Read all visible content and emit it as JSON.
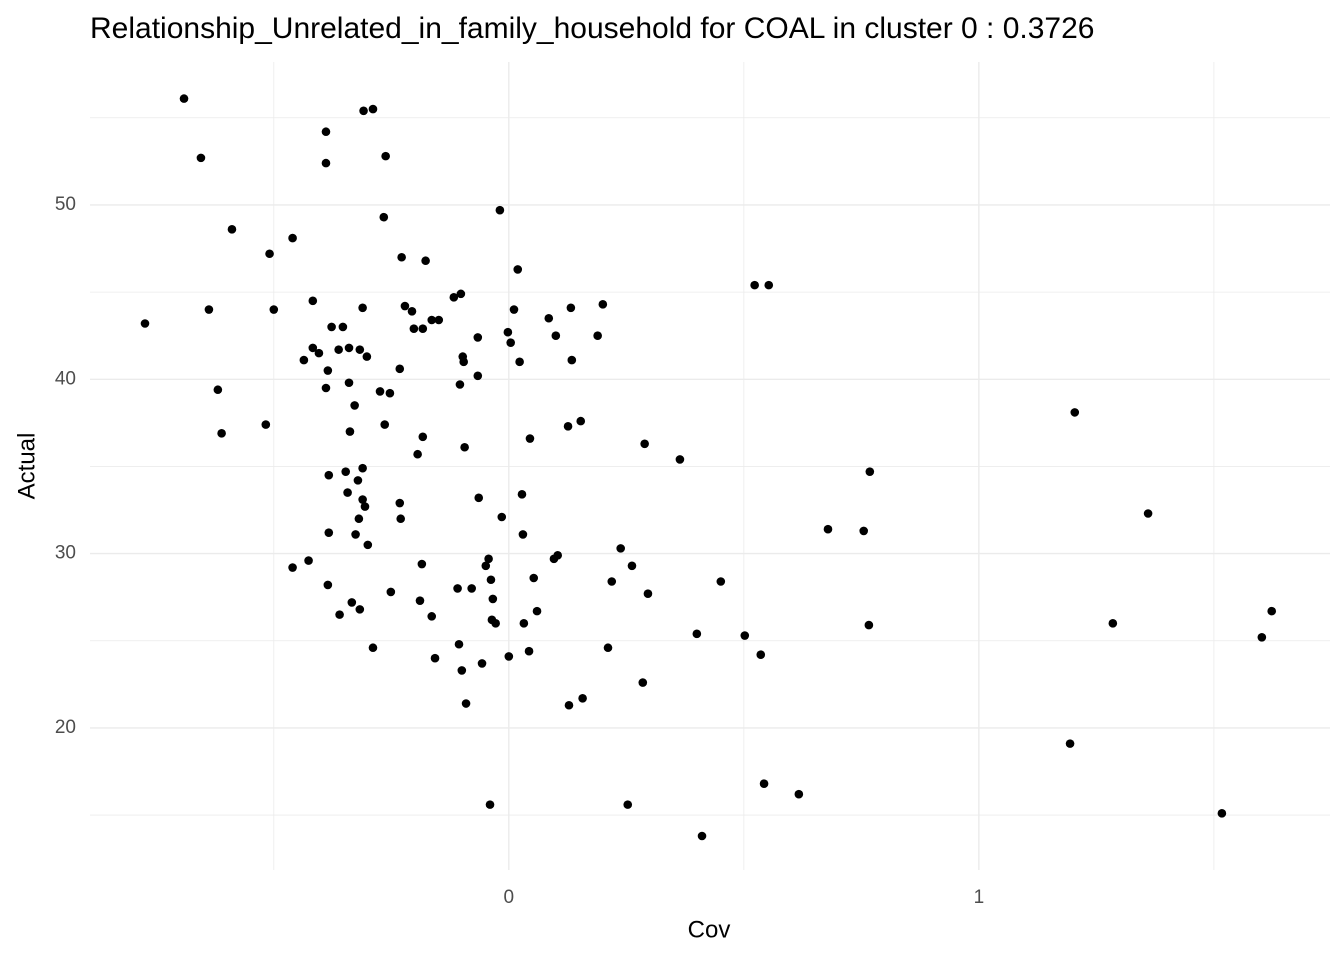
{
  "chart_data": {
    "type": "scatter",
    "title": "Relationship_Unrelated_in_family_household for COAL in cluster 0 : 0.3726",
    "x_label": "Cov",
    "y_label": "Actual",
    "xlim": [
      -0.891,
      1.747
    ],
    "ylim": [
      11.85,
      58.2
    ],
    "xticks": [
      0,
      1
    ],
    "yticks": [
      20,
      30,
      40,
      50
    ],
    "grid": true,
    "minor_grid": true,
    "series": [
      {
        "color": "#000000",
        "x": [
          -0.774,
          -0.691,
          -0.655,
          -0.638,
          -0.619,
          -0.611,
          -0.589,
          -0.517,
          -0.509,
          -0.5,
          -0.46,
          -0.46,
          -0.436,
          -0.426,
          -0.417,
          -0.417,
          -0.404,
          -0.389,
          -0.389,
          -0.389,
          -0.385,
          -0.385,
          -0.383,
          -0.383,
          -0.377,
          -0.362,
          -0.36,
          -0.353,
          -0.347,
          -0.343,
          -0.34,
          -0.34,
          -0.338,
          -0.334,
          -0.328,
          -0.326,
          -0.321,
          -0.319,
          -0.317,
          -0.317,
          -0.311,
          -0.311,
          -0.311,
          -0.309,
          -0.306,
          -0.302,
          -0.3,
          -0.289,
          -0.289,
          -0.274,
          -0.266,
          -0.264,
          -0.262,
          -0.253,
          -0.251,
          -0.232,
          -0.232,
          -0.23,
          -0.228,
          -0.221,
          -0.206,
          -0.202,
          -0.194,
          -0.189,
          -0.185,
          -0.183,
          -0.183,
          -0.177,
          -0.164,
          -0.164,
          -0.157,
          -0.149,
          -0.117,
          -0.109,
          -0.106,
          -0.104,
          -0.102,
          -0.1,
          -0.098,
          -0.096,
          -0.094,
          -0.091,
          -0.079,
          -0.066,
          -0.066,
          -0.064,
          -0.057,
          -0.049,
          -0.043,
          -0.04,
          -0.038,
          -0.036,
          -0.034,
          -0.028,
          -0.019,
          -0.015,
          -0.002,
          0.0,
          0.004,
          0.011,
          0.019,
          0.023,
          0.028,
          0.03,
          0.032,
          0.043,
          0.045,
          0.053,
          0.06,
          0.085,
          0.096,
          0.1,
          0.104,
          0.126,
          0.128,
          0.132,
          0.134,
          0.153,
          0.157,
          0.189,
          0.2,
          0.211,
          0.219,
          0.238,
          0.253,
          0.262,
          0.285,
          0.289,
          0.296,
          0.364,
          0.4,
          0.411,
          0.451,
          0.502,
          0.523,
          0.536,
          0.543,
          0.553,
          0.617,
          0.679,
          0.755,
          0.766,
          0.768,
          1.194,
          1.204,
          1.285,
          1.36,
          1.517,
          1.602,
          1.623
        ],
        "values": [
          43.2,
          56.1,
          52.7,
          44.0,
          39.4,
          36.9,
          48.6,
          37.4,
          47.2,
          44.0,
          48.1,
          29.2,
          41.1,
          29.6,
          44.5,
          41.8,
          41.5,
          54.2,
          52.4,
          39.5,
          40.5,
          28.2,
          34.5,
          31.2,
          43.0,
          41.7,
          26.5,
          43.0,
          34.7,
          33.5,
          41.8,
          39.8,
          37.0,
          27.2,
          38.5,
          31.1,
          34.2,
          32.0,
          41.7,
          26.8,
          34.9,
          33.1,
          44.1,
          55.4,
          32.7,
          41.3,
          30.5,
          55.5,
          24.6,
          39.3,
          49.3,
          37.4,
          52.8,
          39.2,
          27.8,
          40.6,
          32.9,
          32.0,
          47.0,
          44.2,
          43.9,
          42.9,
          35.7,
          27.3,
          29.4,
          36.7,
          42.9,
          46.8,
          26.4,
          43.4,
          24.0,
          43.4,
          44.7,
          28.0,
          24.8,
          39.7,
          44.9,
          23.3,
          41.3,
          41.0,
          36.1,
          21.4,
          28.0,
          42.4,
          40.2,
          33.2,
          23.7,
          29.3,
          29.7,
          15.6,
          28.5,
          26.2,
          27.4,
          26.0,
          49.7,
          32.1,
          42.7,
          24.1,
          42.1,
          44.0,
          46.3,
          41.0,
          33.4,
          31.1,
          26.0,
          24.4,
          36.6,
          28.6,
          26.7,
          43.5,
          29.7,
          42.5,
          29.9,
          37.3,
          21.3,
          44.1,
          41.1,
          37.6,
          21.7,
          42.5,
          44.3,
          24.6,
          28.4,
          30.3,
          15.6,
          29.3,
          22.6,
          36.3,
          27.7,
          35.4,
          25.4,
          13.8,
          28.4,
          25.3,
          45.4,
          24.2,
          16.8,
          45.4,
          16.2,
          31.4,
          31.3,
          25.9,
          34.7,
          19.1,
          38.1,
          26.0,
          32.3,
          15.1,
          25.2,
          26.7
        ]
      }
    ]
  }
}
